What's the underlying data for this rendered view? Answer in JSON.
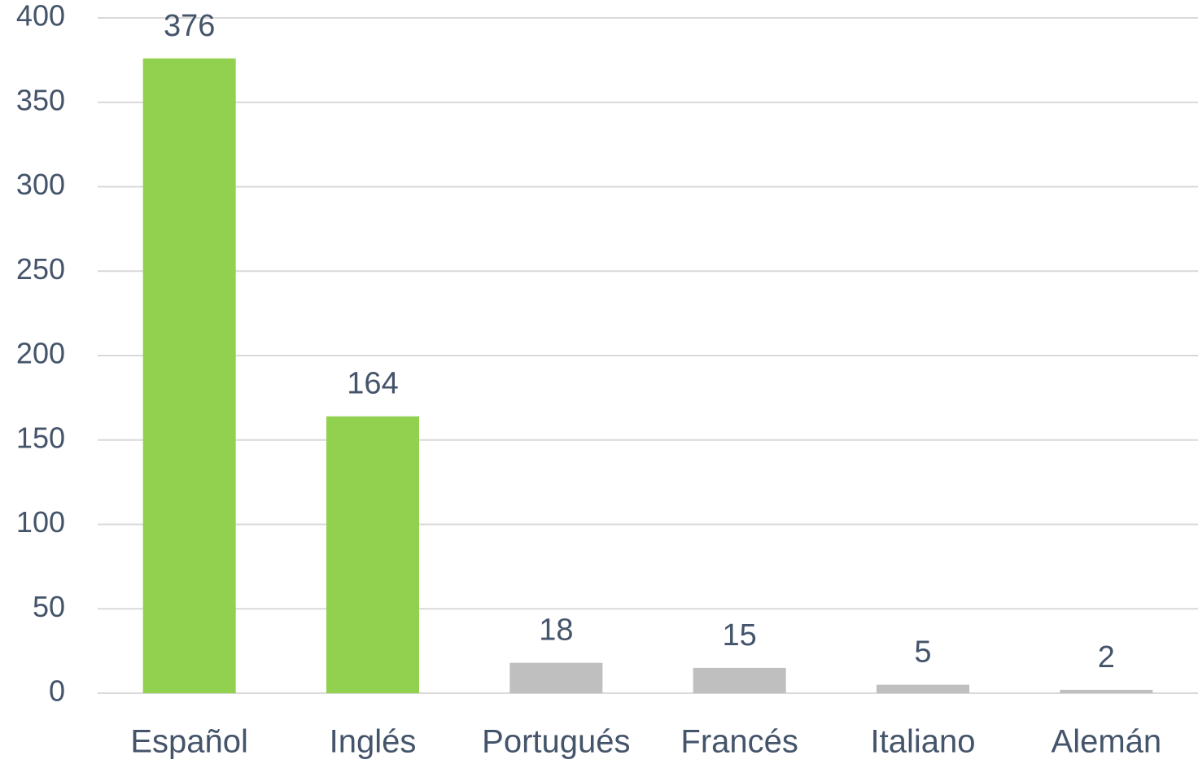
{
  "chart_data": {
    "type": "bar",
    "categories": [
      "Español",
      "Inglés",
      "Portugués",
      "Francés",
      "Italiano",
      "Alemán"
    ],
    "values": [
      376,
      164,
      18,
      15,
      5,
      2
    ],
    "colors": [
      "#92d050",
      "#92d050",
      "#bfbfbf",
      "#bfbfbf",
      "#bfbfbf",
      "#bfbfbf"
    ],
    "ylim": [
      0,
      400
    ],
    "yticks": [
      0,
      50,
      100,
      150,
      200,
      250,
      300,
      350,
      400
    ],
    "grid": true
  }
}
